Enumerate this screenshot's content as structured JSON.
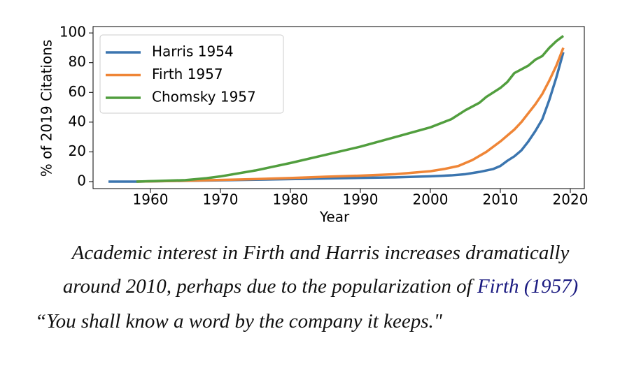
{
  "chart_data": {
    "type": "line",
    "xlabel": "Year",
    "ylabel": "% of 2019 Citations",
    "xlim": [
      1951.8,
      2022
    ],
    "ylim": [
      -4.7,
      104.3
    ],
    "xticks": [
      1960,
      1970,
      1980,
      1990,
      2000,
      2010,
      2020
    ],
    "yticks": [
      0,
      20,
      40,
      60,
      80,
      100
    ],
    "legend": "upper left",
    "series": [
      {
        "name": "Harris 1954",
        "color": "#3b75af",
        "x": [
          1954,
          1958,
          1960,
          1965,
          1970,
          1975,
          1980,
          1985,
          1990,
          1995,
          2000,
          2003,
          2005,
          2007,
          2009,
          2010,
          2011,
          2012,
          2013,
          2014,
          2015,
          2016,
          2017,
          2018,
          2019
        ],
        "values": [
          0,
          0,
          0.2,
          0.5,
          0.9,
          1.3,
          1.7,
          2.1,
          2.5,
          2.9,
          3.6,
          4.2,
          5,
          6.5,
          8.5,
          10.5,
          14,
          17,
          21,
          27,
          34,
          42,
          55,
          70,
          87
        ]
      },
      {
        "name": "Firth 1957",
        "color": "#ef8536",
        "x": [
          1958,
          1960,
          1965,
          1970,
          1975,
          1980,
          1985,
          1990,
          1995,
          2000,
          2002,
          2004,
          2006,
          2008,
          2010,
          2011,
          2012,
          2013,
          2014,
          2015,
          2016,
          2017,
          2018,
          2019
        ],
        "values": [
          0,
          0.2,
          0.6,
          1.1,
          1.7,
          2.4,
          3.3,
          4,
          5,
          7,
          8.5,
          10.5,
          14.5,
          20,
          27,
          31,
          35,
          40,
          46,
          52,
          59,
          68,
          78,
          90
        ]
      },
      {
        "name": "Chomsky 1957",
        "color": "#519e3e",
        "x": [
          1958,
          1960,
          1965,
          1968,
          1970,
          1975,
          1980,
          1985,
          1990,
          1995,
          2000,
          2003,
          2005,
          2007,
          2008,
          2010,
          2011,
          2012,
          2013,
          2014,
          2015,
          2016,
          2017,
          2018,
          2019
        ],
        "values": [
          0,
          0.3,
          1,
          2.3,
          3.5,
          7.5,
          12.5,
          18,
          23.5,
          30,
          36.5,
          42,
          48,
          53,
          57,
          63,
          67,
          73,
          75.5,
          78,
          82,
          84.5,
          90,
          94.5,
          98
        ]
      }
    ]
  },
  "caption": {
    "line1": "Academic interest in Firth and Harris increases dramatically",
    "line2": "around 2010, perhaps due to the popularization of",
    "citation_author": "Firth",
    "citation_year": "(1957)",
    "quote": "“You shall know a word by the company it keeps.\""
  }
}
